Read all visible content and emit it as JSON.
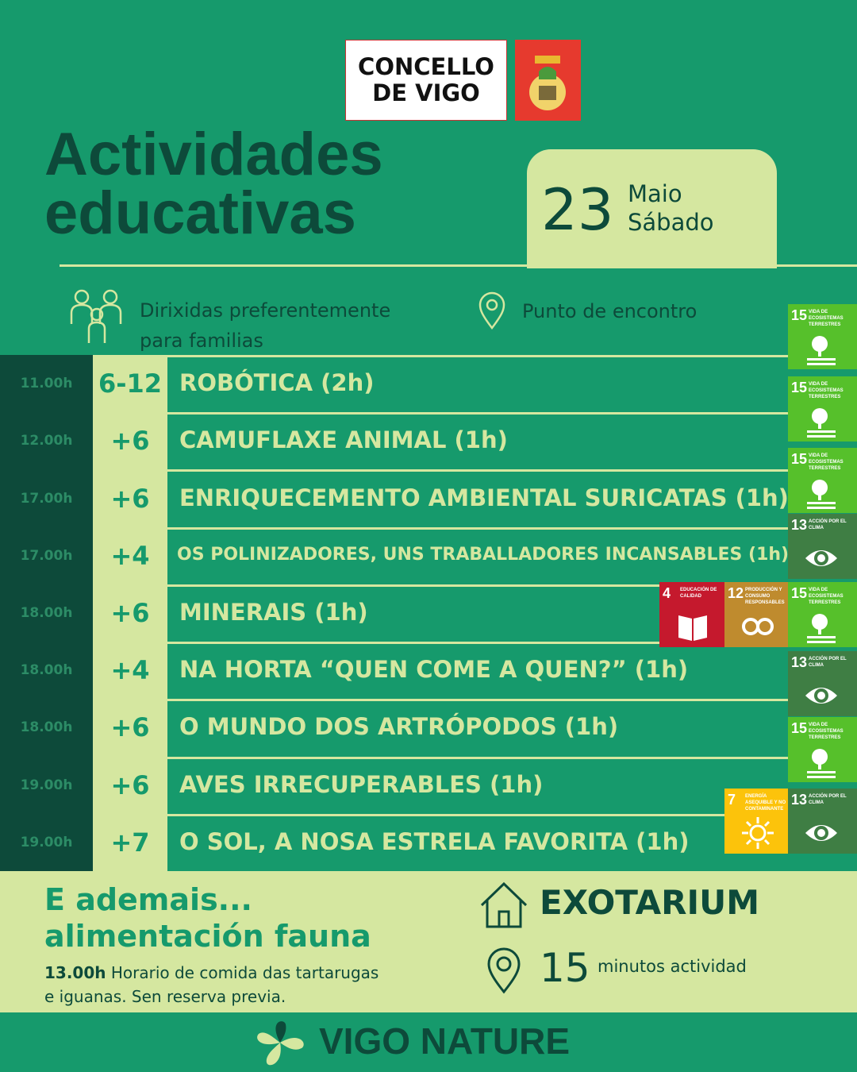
{
  "header": {
    "logo_line1": "CONCELLO",
    "logo_line2": "DE VIGO",
    "title_line1": "Actividades",
    "title_line2": "educativas"
  },
  "date": {
    "day": "23",
    "month": "Maio",
    "weekday": "Sábado"
  },
  "legend": {
    "audience_line1": "Dirixidas preferentemente",
    "audience_line2": "para familias",
    "meeting": "Punto de encontro"
  },
  "activities": [
    {
      "time": "11.00h",
      "age": "6-12",
      "name": "ROBÓTICA (2h)"
    },
    {
      "time": "12.00h",
      "age": "+6",
      "name": "CAMUFLAXE ANIMAL (1h)"
    },
    {
      "time": "17.00h",
      "age": "+6",
      "name": "ENRIQUECEMENTO AMBIENTAL SURICATAS (1h)"
    },
    {
      "time": "17.00h",
      "age": "+4",
      "name": "OS POLINIZADORES, UNS TRABALLADORES INCANSABLES (1h)"
    },
    {
      "time": "18.00h",
      "age": "+6",
      "name": "MINERAIS  (1h)"
    },
    {
      "time": "18.00h",
      "age": "+4",
      "name": "NA HORTA “QUEN COME A QUEN?”  (1h)"
    },
    {
      "time": "18.00h",
      "age": "+6",
      "name": "O MUNDO DOS ARTRÓPODOS (1h)"
    },
    {
      "time": "19.00h",
      "age": "+6",
      "name": "AVES IRRECUPERABLES (1h)"
    },
    {
      "time": "19.00h",
      "age": "+7",
      "name": "O SOL, A NOSA ESTRELA FAVORITA  (1h)"
    }
  ],
  "sdg_badges": [
    {
      "number": "15",
      "label": "VIDA DE ECOSISTEMAS TERRESTRES",
      "color": "#56c02b",
      "icon": "tree"
    },
    {
      "number": "15",
      "label": "VIDA DE ECOSISTEMAS TERRESTRES",
      "color": "#56c02b",
      "icon": "tree"
    },
    {
      "number": "15",
      "label": "VIDA DE ECOSISTEMAS TERRESTRES",
      "color": "#56c02b",
      "icon": "tree"
    },
    {
      "number": "13",
      "label": "ACCIÓN POR EL CLIMA",
      "color": "#3f7e44",
      "icon": "eye"
    },
    {
      "number": "4",
      "label": "EDUCACIÓN DE CALIDAD",
      "color": "#c5192d",
      "icon": "book"
    },
    {
      "number": "12",
      "label": "PRODUCCIÓN Y CONSUMO RESPONSABLES",
      "color": "#bf8b2e",
      "icon": "loop"
    },
    {
      "number": "15",
      "label": "VIDA DE ECOSISTEMAS TERRESTRES",
      "color": "#56c02b",
      "icon": "tree"
    },
    {
      "number": "13",
      "label": "ACCIÓN POR EL CLIMA",
      "color": "#3f7e44",
      "icon": "eye"
    },
    {
      "number": "15",
      "label": "VIDA DE ECOSISTEMAS TERRESTRES",
      "color": "#56c02b",
      "icon": "tree"
    },
    {
      "number": "7",
      "label": "ENERGÍA ASEQUIBLE Y NO CONTAMINANTE",
      "color": "#fcc30b",
      "icon": "sun"
    },
    {
      "number": "13",
      "label": "ACCIÓN POR EL CLIMA",
      "color": "#3f7e44",
      "icon": "eye"
    }
  ],
  "extra": {
    "title_line1": "E ademais...",
    "title_line2": "alimentación fauna",
    "time": "13.00h",
    "text_line1": "Horario de comida das tartarugas",
    "text_line2": "e iguanas. Sen reserva previa."
  },
  "venue": {
    "name": "EXOTARIUM",
    "minutes": "15",
    "minutes_label": "minutos actividad"
  },
  "footer": {
    "brand": "VIGO NATURE"
  }
}
